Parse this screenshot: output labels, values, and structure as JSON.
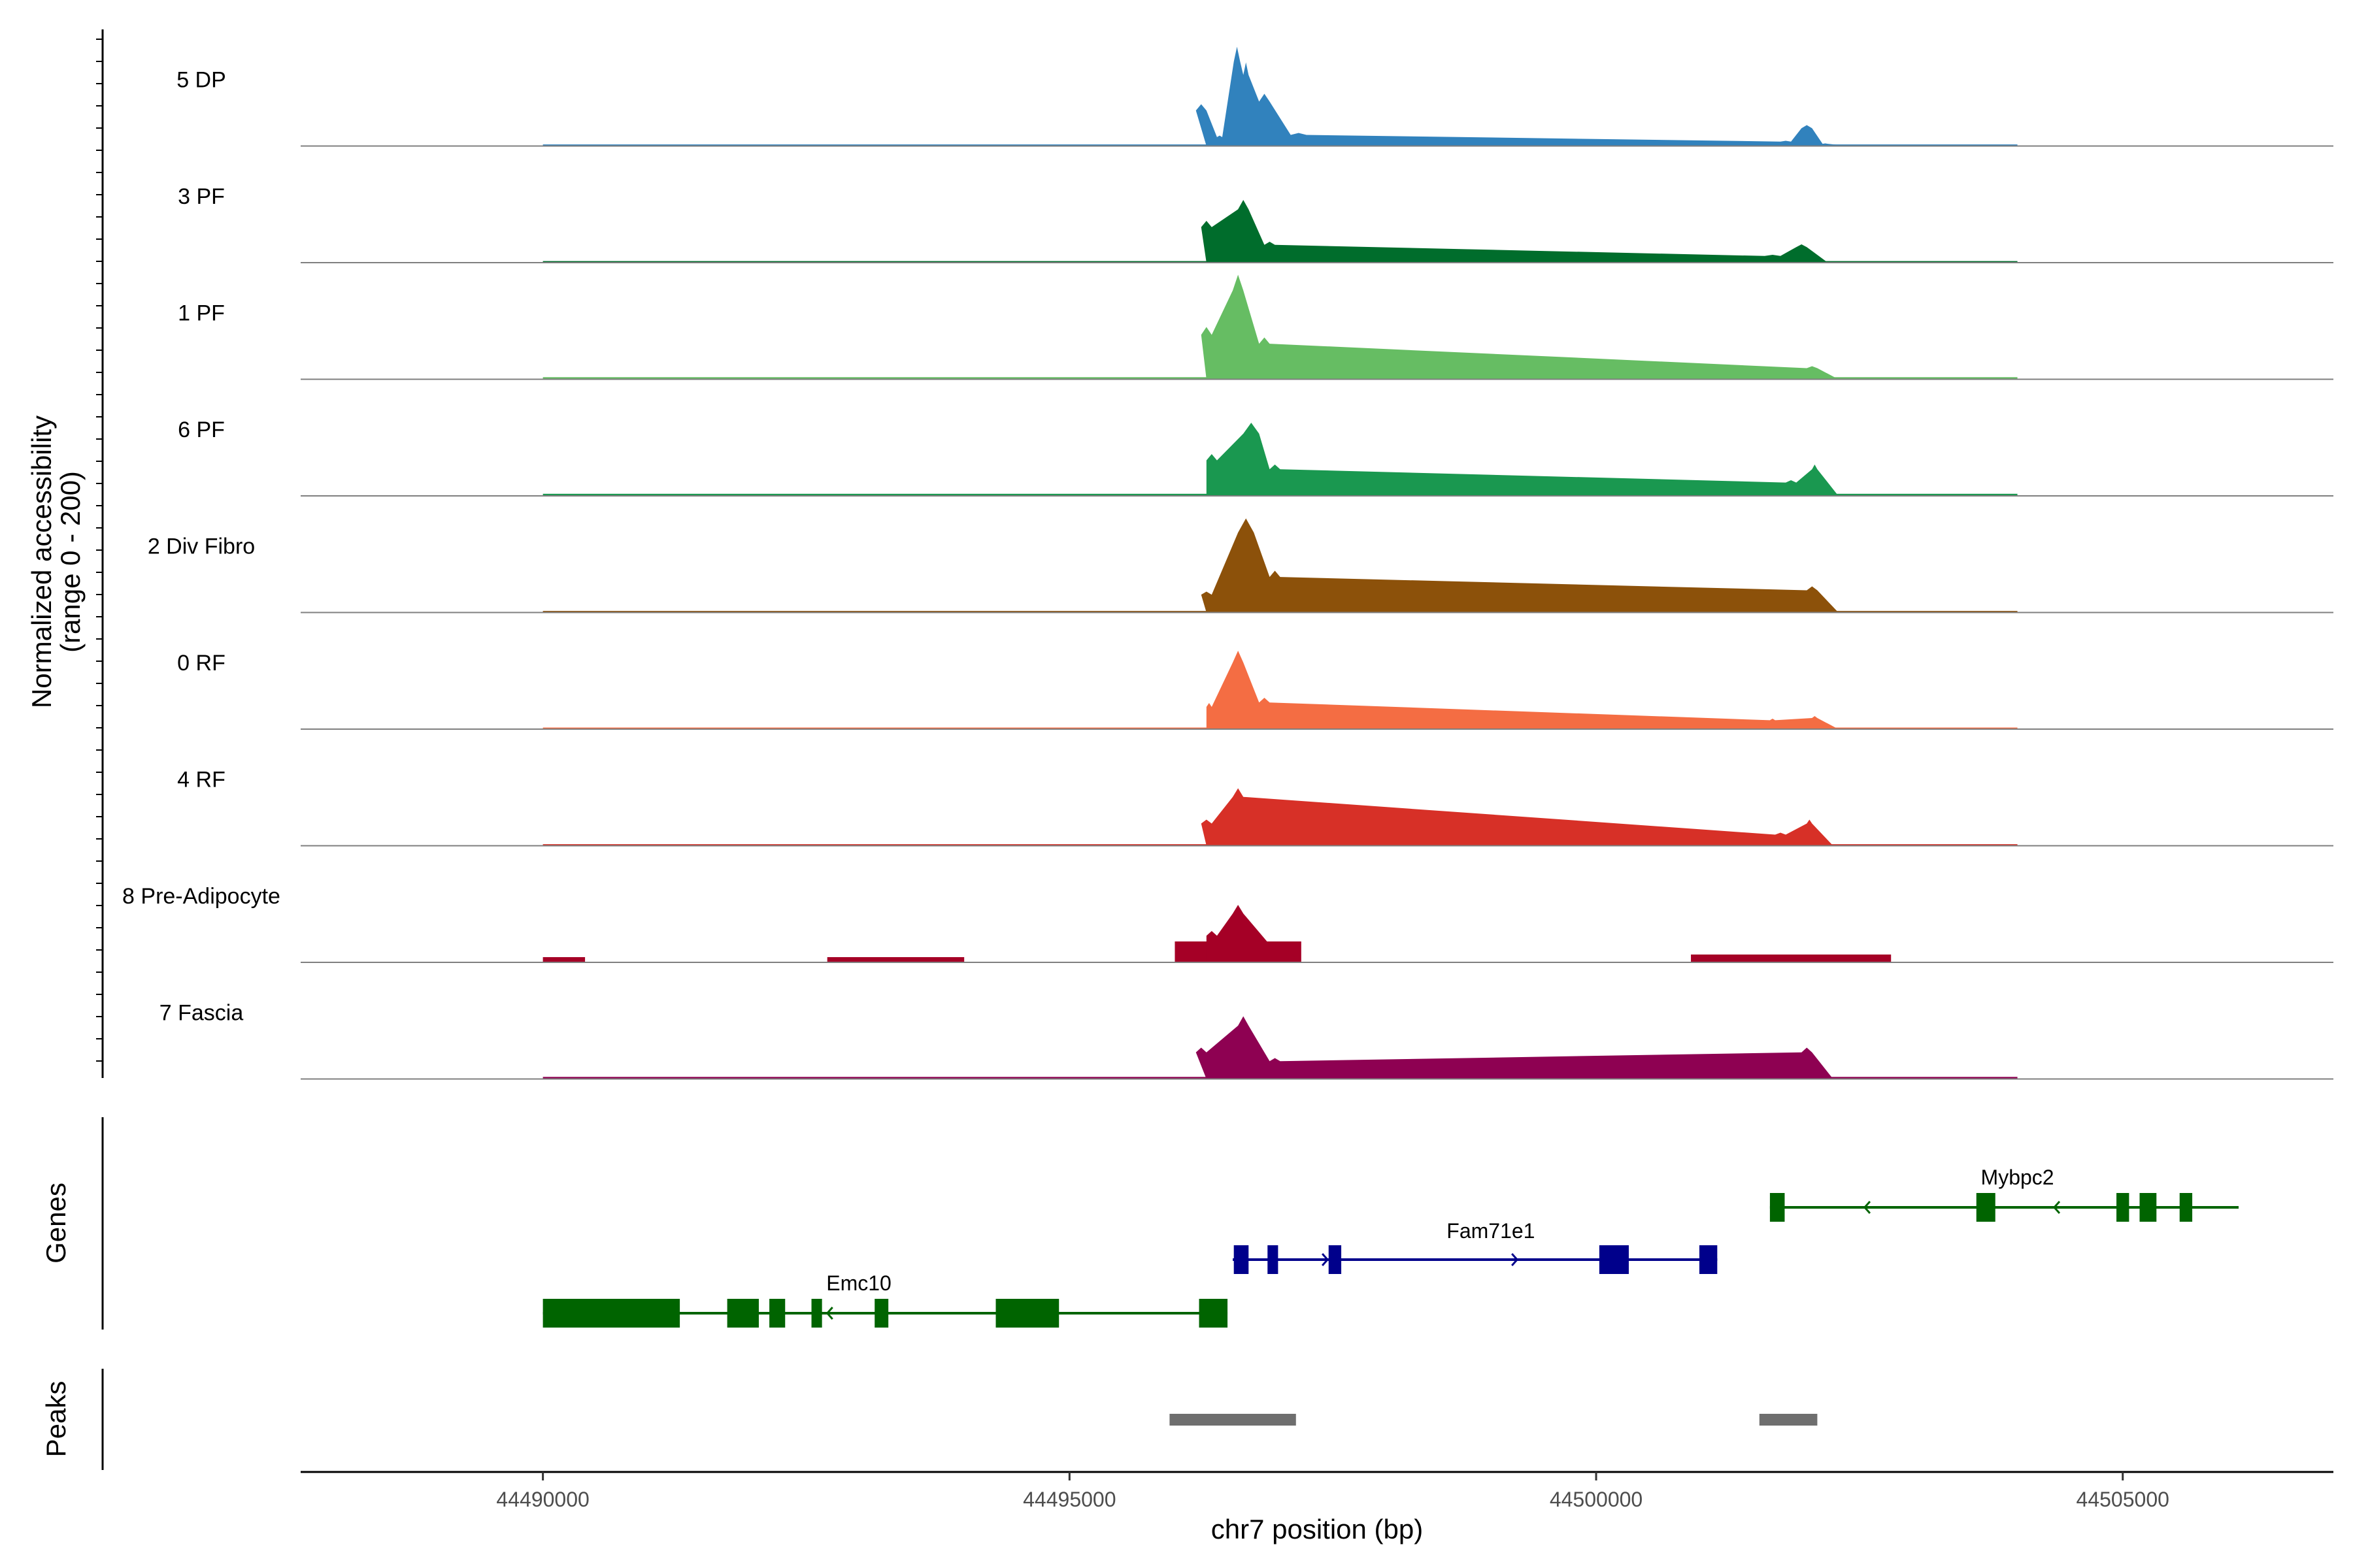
{
  "chart_data": {
    "type": "area",
    "title": "",
    "chromosome": "chr7",
    "xlabel": "chr7 position (bp)",
    "ylabel": "Normalized accessibility",
    "ylabel_range": "(range 0 - 200)",
    "xlim": [
      44487700,
      44507000
    ],
    "ylim": [
      0,
      200
    ],
    "x_ticks": [
      44490000,
      44495000,
      44500000,
      44505000
    ],
    "x_tick_labels": [
      "44490000",
      "44495000",
      "44500000",
      "44505000"
    ],
    "panel_labels": {
      "genes": "Genes",
      "peaks": "Peaks"
    },
    "tracks": [
      {
        "name": "5 DP",
        "color": "#3182bd",
        "scale": 1.0,
        "baseline": [
          [
            44490000,
            44504000,
            3
          ]
        ],
        "peaks": [
          [
            44496000,
            44496300,
            0
          ],
          [
            44496200,
            44496300,
            80
          ],
          [
            44496400,
            44496450,
            20
          ],
          [
            44496560,
            44496620,
            190
          ],
          [
            44496650,
            44496700,
            160
          ],
          [
            44496800,
            44496900,
            100
          ],
          [
            44497100,
            44497250,
            25
          ],
          [
            44501750,
            44501850,
            10
          ],
          [
            44501950,
            44502050,
            40
          ],
          [
            44502150,
            44502200,
            5
          ]
        ]
      },
      {
        "name": "3 PF",
        "color": "#006d2c",
        "scale": 1.0,
        "baseline": [
          [
            44490000,
            44504000,
            3
          ]
        ],
        "peaks": [
          [
            44496000,
            44496300,
            0
          ],
          [
            44496250,
            44496350,
            80
          ],
          [
            44496600,
            44496700,
            120
          ],
          [
            44496850,
            44496950,
            40
          ],
          [
            44501600,
            44501750,
            15
          ],
          [
            44501900,
            44502000,
            35
          ]
        ]
      },
      {
        "name": "1 PF",
        "color": "#66bd63",
        "scale": 1.0,
        "baseline": [
          [
            44490000,
            44504000,
            4
          ]
        ],
        "peaks": [
          [
            44496000,
            44496300,
            0
          ],
          [
            44496250,
            44496350,
            100
          ],
          [
            44496550,
            44496650,
            200
          ],
          [
            44496800,
            44496900,
            80
          ],
          [
            44502000,
            44502100,
            25
          ]
        ]
      },
      {
        "name": "6 PF",
        "color": "#1a9850",
        "scale": 1.0,
        "baseline": [
          [
            44490000,
            44504000,
            4
          ]
        ],
        "peaks": [
          [
            44496000,
            44496300,
            0
          ],
          [
            44496300,
            44496400,
            80
          ],
          [
            44496650,
            44496800,
            140
          ],
          [
            44496900,
            44497000,
            60
          ],
          [
            44501800,
            44501900,
            30
          ],
          [
            44502050,
            44502100,
            60
          ]
        ]
      },
      {
        "name": "2 Div Fibro",
        "color": "#8c510a",
        "scale": 1.0,
        "baseline": [
          [
            44490000,
            44504000,
            3
          ]
        ],
        "peaks": [
          [
            44496000,
            44496300,
            0
          ],
          [
            44496250,
            44496350,
            40
          ],
          [
            44496600,
            44496750,
            180
          ],
          [
            44496900,
            44497000,
            80
          ],
          [
            44502000,
            44502100,
            50
          ]
        ]
      },
      {
        "name": "0 RF",
        "color": "#f46d43",
        "scale": 1.0,
        "baseline": [
          [
            44490000,
            44504000,
            3
          ]
        ],
        "peaks": [
          [
            44496000,
            44496300,
            0
          ],
          [
            44496300,
            44496350,
            50
          ],
          [
            44496550,
            44496650,
            150
          ],
          [
            44496800,
            44496900,
            60
          ],
          [
            44501650,
            44501700,
            20
          ],
          [
            44502050,
            44502100,
            25
          ]
        ]
      },
      {
        "name": "4 RF",
        "color": "#d73027",
        "scale": 1.0,
        "baseline": [
          [
            44490000,
            44504000,
            3
          ]
        ],
        "peaks": [
          [
            44496000,
            44496300,
            0
          ],
          [
            44496250,
            44496350,
            50
          ],
          [
            44496550,
            44496650,
            110
          ],
          [
            44501700,
            44501800,
            25
          ],
          [
            44502000,
            44502050,
            50
          ]
        ]
      },
      {
        "name": "8 Pre-Adipocyte",
        "color": "#a50026",
        "scale": 1.0,
        "baseline": [
          [
            44490000,
            44490400,
            10
          ],
          [
            44492700,
            44494000,
            10
          ],
          [
            44496000,
            44497200,
            40
          ],
          [
            44500900,
            44502800,
            15
          ]
        ],
        "peaks": [
          [
            44496000,
            44496300,
            0
          ],
          [
            44496300,
            44496400,
            60
          ],
          [
            44496550,
            44496650,
            110
          ],
          [
            44496900,
            44497000,
            40
          ]
        ]
      },
      {
        "name": "7 Fascia",
        "color": "#8e0152",
        "scale": 1.0,
        "baseline": [
          [
            44490000,
            44504000,
            4
          ]
        ],
        "peaks": [
          [
            44496000,
            44496300,
            0
          ],
          [
            44496200,
            44496300,
            60
          ],
          [
            44496600,
            44496700,
            120
          ],
          [
            44496900,
            44497000,
            40
          ],
          [
            44501950,
            44502050,
            60
          ]
        ]
      }
    ],
    "genes": [
      {
        "name": "Emc10",
        "strand": "-",
        "color": "#006400",
        "start": 44490000,
        "end": 44496500,
        "exons": [
          [
            44490000,
            44491300
          ],
          [
            44491750,
            44492050
          ],
          [
            44492150,
            44492300
          ],
          [
            44492550,
            44492650
          ],
          [
            44493150,
            44493280
          ],
          [
            44494300,
            44494900
          ],
          [
            44496230,
            44496500
          ]
        ]
      },
      {
        "name": "Fam71e1",
        "strand": "+",
        "color": "#00008b",
        "start": 44496550,
        "end": 44501150,
        "exons": [
          [
            44496560,
            44496700
          ],
          [
            44496880,
            44496980
          ],
          [
            44497460,
            44497580
          ],
          [
            44500030,
            44500310
          ],
          [
            44500980,
            44501150
          ]
        ]
      },
      {
        "name": "Mybpc2",
        "strand": "-",
        "color": "#006400",
        "start": 44501650,
        "end": 44506100,
        "exons": [
          [
            44501650,
            44501790
          ],
          [
            44503610,
            44503790
          ],
          [
            44504940,
            44505060
          ],
          [
            44505160,
            44505320
          ],
          [
            44505540,
            44505660
          ]
        ]
      }
    ],
    "peak_regions": [
      [
        44495950,
        44497150
      ],
      [
        44501550,
        44502100
      ]
    ]
  }
}
